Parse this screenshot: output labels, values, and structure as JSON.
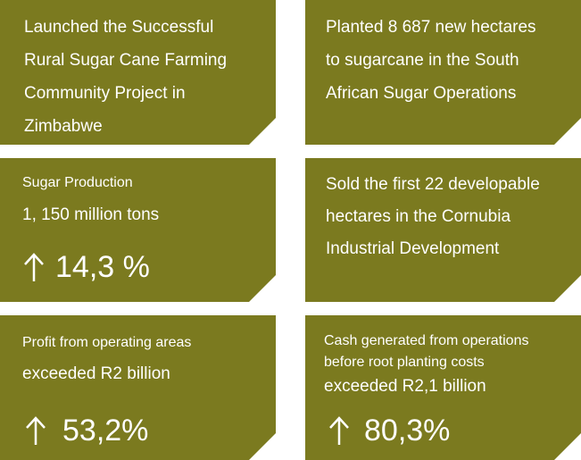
{
  "tiles": [
    {
      "lines": [
        "Launched the Successful",
        "Rural Sugar Cane Farming",
        "Community Project in",
        "Zimbabwe"
      ]
    },
    {
      "lines": [
        "Planted 8 687 new hectares",
        "to sugarcane in the South",
        "African Sugar Operations"
      ]
    },
    {
      "label": [
        "Sugar Production"
      ],
      "headline": "1, 150 million tons",
      "change": "14,3 %"
    },
    {
      "lines": [
        "Sold the first 22 developable",
        "hectares in the Cornubia",
        "Industrial Development"
      ]
    },
    {
      "label": [
        "Profit from operating areas"
      ],
      "headline": "exceeded R2 billion",
      "change": "53,2%"
    },
    {
      "label": [
        "Cash generated from operations",
        "before root planting costs"
      ],
      "headline": "exceeded R2,1 billion",
      "change": "80,3%"
    }
  ]
}
